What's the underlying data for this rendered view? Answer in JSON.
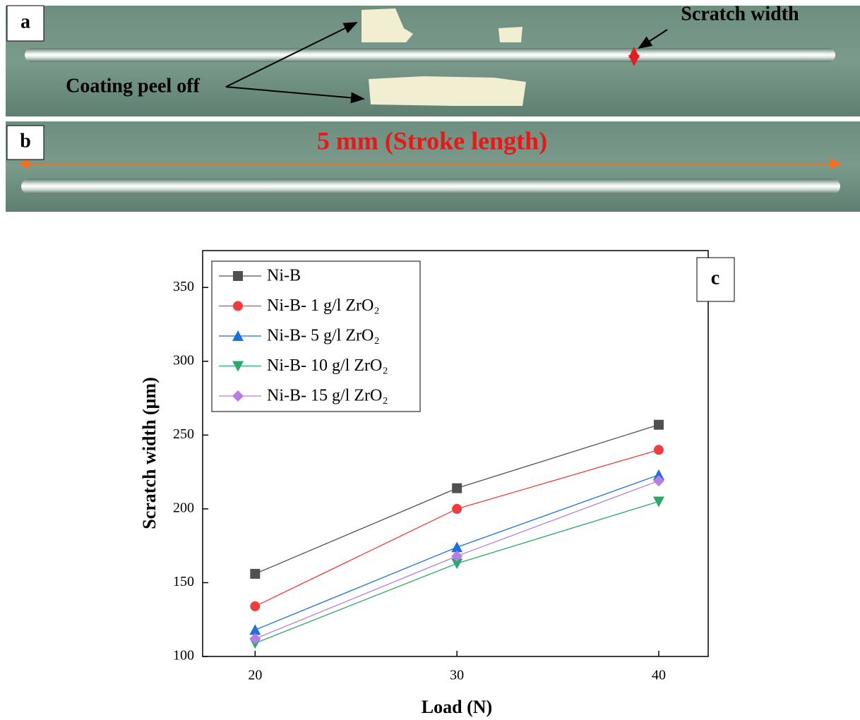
{
  "panel_a": {
    "label": "a",
    "scratch_note": "Scratch width",
    "peel_note": "Coating peel off"
  },
  "panel_b": {
    "label": "b",
    "stroke_note": "5 mm (Stroke length)"
  },
  "chart_data": {
    "type": "line",
    "panel_label": "c",
    "x_label": "Load (N)",
    "y_label": "Scratch width (μm)",
    "x": [
      20,
      30,
      40
    ],
    "series": [
      {
        "name": "Ni-B",
        "color": "#505050",
        "marker": "square",
        "values": [
          156,
          214,
          257
        ]
      },
      {
        "name": "Ni-B- 1 g/l ZrO₂",
        "color": "#f03c3c",
        "marker": "circle",
        "values": [
          134,
          200,
          240
        ]
      },
      {
        "name": "Ni-B- 5 g/l ZrO₂",
        "color": "#1e6fd8",
        "marker": "triangle-up",
        "values": [
          118,
          174,
          223
        ]
      },
      {
        "name": "Ni-B- 10 g/l ZrO₂",
        "color": "#2aa86a",
        "marker": "triangle-down",
        "values": [
          109,
          163,
          205
        ]
      },
      {
        "name": "Ni-B- 15 g/l ZrO₂",
        "color": "#b47ee6",
        "marker": "diamond",
        "values": [
          112,
          168,
          219
        ]
      }
    ],
    "xlim": [
      17.4,
      42.45
    ],
    "xticks": [
      20,
      30,
      40
    ],
    "ylim": [
      100,
      375
    ],
    "yticks": [
      100,
      150,
      200,
      250,
      300,
      350
    ],
    "legend": "upper-left"
  }
}
